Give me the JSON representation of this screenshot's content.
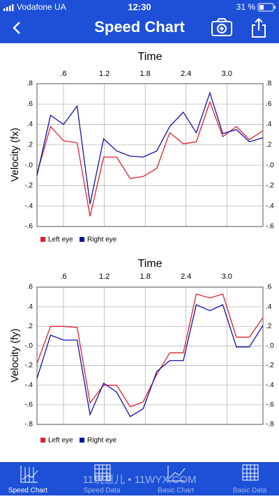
{
  "status_bar": {
    "carrier": "Vodafone UA",
    "time": "12:30",
    "battery": "31 %"
  },
  "nav_bar": {
    "title": "Speed Chart"
  },
  "chart_data": [
    {
      "type": "line",
      "title": "Time",
      "y_label": "Velocity (fx)",
      "x": [
        0.21,
        0.41,
        0.6,
        0.8,
        0.99,
        1.19,
        1.38,
        1.58,
        1.77,
        1.97,
        2.16,
        2.36,
        2.55,
        2.75,
        2.94,
        3.14,
        3.33,
        3.53
      ],
      "xlim": [
        0.21,
        3.53
      ],
      "xticks": [
        {
          "value": 0.6,
          "label": ".6"
        },
        1.2,
        1.8,
        2.4,
        {
          "value": 3.0,
          "label": "3.0"
        }
      ],
      "ylim": [
        -0.6,
        0.8
      ],
      "yticks": [
        {
          "value": 0.8,
          "label": ".8"
        },
        {
          "value": 0.6,
          "label": ".6"
        },
        {
          "value": 0.4,
          "label": ".4"
        },
        {
          "value": 0.2,
          "label": ".2"
        },
        {
          "value": 0,
          "label": "-.0"
        },
        {
          "value": -0.2,
          "label": "-.2"
        },
        {
          "value": -0.4,
          "label": "-.4"
        },
        {
          "value": -0.6,
          "label": "-.6"
        }
      ],
      "grid": true,
      "legend": "bottom",
      "series": [
        {
          "name": "Left eye",
          "color": "#e0202a",
          "values": [
            -0.08,
            0.38,
            0.24,
            0.22,
            -0.5,
            0.08,
            0.08,
            -0.13,
            -0.11,
            -0.03,
            0.32,
            0.21,
            0.23,
            0.62,
            0.28,
            0.38,
            0.25,
            0.34
          ]
        },
        {
          "name": "Right eye",
          "color": "#1010a8",
          "values": [
            -0.1,
            0.49,
            0.4,
            0.58,
            -0.38,
            0.26,
            0.14,
            0.09,
            0.08,
            0.14,
            0.38,
            0.52,
            0.32,
            0.71,
            0.31,
            0.35,
            0.23,
            0.27
          ]
        }
      ]
    },
    {
      "type": "line",
      "title": "Time",
      "y_label": "Velocity (fy)",
      "x": [
        0.21,
        0.41,
        0.6,
        0.8,
        0.99,
        1.19,
        1.38,
        1.58,
        1.77,
        1.97,
        2.16,
        2.36,
        2.55,
        2.75,
        2.94,
        3.14,
        3.33,
        3.53
      ],
      "xlim": [
        0.21,
        3.53
      ],
      "xticks": [
        {
          "value": 0.6,
          "label": ".6"
        },
        1.2,
        1.8,
        2.4,
        {
          "value": 3.0,
          "label": "3.0"
        }
      ],
      "ylim": [
        -0.8,
        0.6
      ],
      "yticks": [
        {
          "value": 0.6,
          "label": ".6"
        },
        {
          "value": 0.4,
          "label": ".4"
        },
        {
          "value": 0.2,
          "label": ".2"
        },
        {
          "value": 0,
          "label": "-.0"
        },
        {
          "value": -0.2,
          "label": "-.2"
        },
        {
          "value": -0.4,
          "label": "-.4"
        },
        {
          "value": -0.6,
          "label": "-.6"
        },
        {
          "value": -0.8,
          "label": "-.8"
        }
      ],
      "grid": true,
      "legend": "bottom",
      "series": [
        {
          "name": "Left eye",
          "color": "#e0202a",
          "values": [
            -0.18,
            0.2,
            0.2,
            0.19,
            -0.58,
            -0.4,
            -0.4,
            -0.62,
            -0.57,
            -0.29,
            -0.07,
            -0.07,
            0.53,
            0.49,
            0.53,
            0.09,
            0.09,
            0.29
          ]
        },
        {
          "name": "Right eye",
          "color": "#1010a8",
          "values": [
            -0.33,
            0.11,
            0.06,
            0.06,
            -0.7,
            -0.38,
            -0.47,
            -0.72,
            -0.64,
            -0.26,
            -0.15,
            -0.15,
            0.42,
            0.36,
            0.42,
            -0.01,
            -0.01,
            0.21
          ]
        }
      ]
    }
  ],
  "tab_bar": {
    "items": [
      "Speed Chart",
      "Speed Data",
      "Basic Chart",
      "Basic Data"
    ]
  },
  "watermark": "11玩意儿 • 11WYX.COM"
}
